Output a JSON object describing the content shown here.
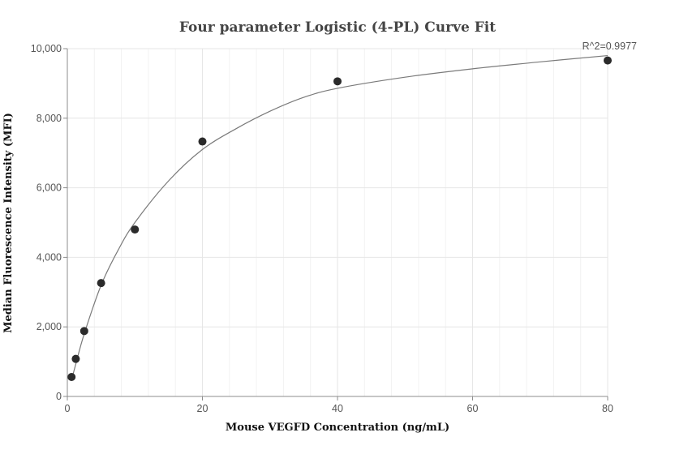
{
  "chart_data": {
    "type": "scatter",
    "title": "Four parameter Logistic (4-PL) Curve Fit",
    "xlabel": "Mouse VEGFD Concentration (ng/mL)",
    "ylabel": "Median Fluorescence Intensity (MFI)",
    "xlim": [
      0,
      80
    ],
    "ylim": [
      0,
      10000
    ],
    "x_ticks": [
      0,
      20,
      40,
      60,
      80
    ],
    "x_tick_labels": [
      "0",
      "20",
      "40",
      "60",
      "80"
    ],
    "y_ticks": [
      0,
      2000,
      4000,
      6000,
      8000,
      10000
    ],
    "y_tick_labels": [
      "0",
      "2,000",
      "4,000",
      "6,000",
      "8,000",
      "10,000"
    ],
    "grid": true,
    "annotation": "R^2=0.9977",
    "points": [
      {
        "x": 0.625,
        "y": 560
      },
      {
        "x": 1.25,
        "y": 1080
      },
      {
        "x": 2.5,
        "y": 1880
      },
      {
        "x": 5,
        "y": 3260
      },
      {
        "x": 10,
        "y": 4800
      },
      {
        "x": 20,
        "y": 7330
      },
      {
        "x": 40,
        "y": 9060
      },
      {
        "x": 80,
        "y": 9660
      }
    ],
    "fit_curve": [
      {
        "x": 0.625,
        "y": 480
      },
      {
        "x": 1.25,
        "y": 930
      },
      {
        "x": 2.5,
        "y": 1800
      },
      {
        "x": 5,
        "y": 3200
      },
      {
        "x": 7.5,
        "y": 4200
      },
      {
        "x": 10,
        "y": 5000
      },
      {
        "x": 15,
        "y": 6200
      },
      {
        "x": 20,
        "y": 7100
      },
      {
        "x": 25,
        "y": 7700
      },
      {
        "x": 30,
        "y": 8200
      },
      {
        "x": 35,
        "y": 8600
      },
      {
        "x": 40,
        "y": 8860
      },
      {
        "x": 50,
        "y": 9180
      },
      {
        "x": 60,
        "y": 9420
      },
      {
        "x": 70,
        "y": 9620
      },
      {
        "x": 80,
        "y": 9800
      }
    ],
    "colors": {
      "point": "#2b2b2b",
      "curve": "#7a7a7a",
      "grid_major": "#e6e6e6",
      "grid_minor": "#f2f2f2",
      "axis": "#8c8c8c"
    }
  }
}
